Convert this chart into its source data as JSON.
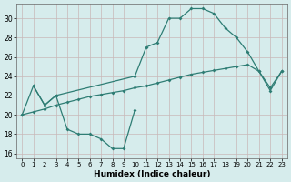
{
  "line1_x": [
    0,
    1,
    2,
    3,
    10,
    11,
    12,
    13,
    14,
    15,
    16,
    17,
    18,
    19,
    20,
    21,
    22,
    23
  ],
  "line1_y": [
    20,
    23,
    21,
    22,
    24,
    27,
    27.5,
    30,
    30,
    31,
    31,
    30.5,
    29,
    28.0,
    26.5,
    24.5,
    22.5,
    24.5
  ],
  "line2_x": [
    1,
    2,
    3,
    4,
    5,
    6,
    7,
    8,
    9,
    10
  ],
  "line2_y": [
    23,
    21,
    22,
    18.5,
    18,
    18,
    17.5,
    16.5,
    16.5,
    20.5
  ],
  "line3_x": [
    0,
    1,
    2,
    3,
    4,
    5,
    6,
    7,
    8,
    9,
    10,
    11,
    12,
    13,
    14,
    15,
    16,
    17,
    18,
    19,
    20,
    21,
    22,
    23
  ],
  "line3_y": [
    20,
    20.3,
    20.6,
    21.0,
    21.3,
    21.6,
    21.9,
    22.1,
    22.3,
    22.5,
    22.8,
    23.0,
    23.3,
    23.6,
    23.9,
    24.2,
    24.4,
    24.6,
    24.8,
    25.0,
    25.2,
    24.5,
    22.8,
    24.5
  ],
  "line_color": "#2e7d74",
  "bg_color": "#d6ecec",
  "grid_color_major": "#c8b8b8",
  "grid_color_minor": "#e0d0d0",
  "xlabel": "Humidex (Indice chaleur)",
  "xlim": [
    -0.5,
    23.5
  ],
  "ylim": [
    15.5,
    31.5
  ],
  "yticks": [
    16,
    18,
    20,
    22,
    24,
    26,
    28,
    30
  ],
  "xticks": [
    0,
    1,
    2,
    3,
    4,
    5,
    6,
    7,
    8,
    9,
    10,
    11,
    12,
    13,
    14,
    15,
    16,
    17,
    18,
    19,
    20,
    21,
    22,
    23
  ],
  "xlabel_fontsize": 6.5,
  "tick_fontsize": 5.0
}
